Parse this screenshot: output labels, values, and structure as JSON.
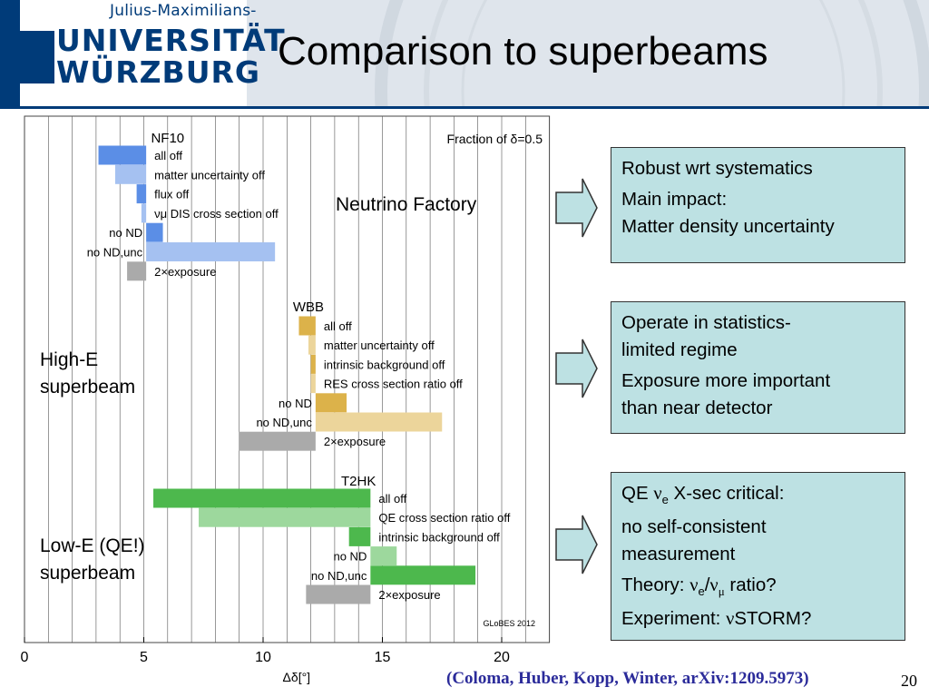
{
  "header": {
    "logo_small": "Julius-Maximilians-",
    "logo_line1": "UNIVERSITÄT",
    "logo_line2": "WÜRZBURG",
    "title": "Comparison to superbeams"
  },
  "chart_data": {
    "type": "bar",
    "subtype": "floating-horizontal",
    "title": "Fraction of δ=0.5",
    "xlabel": "Δδ[°]",
    "xlim": [
      0,
      22
    ],
    "xticks": [
      0,
      5,
      10,
      15,
      20
    ],
    "grid": true,
    "watermark": "GLoBES 2012",
    "groups": [
      {
        "name": "NF10",
        "color": "#5b8ee6",
        "bars": [
          {
            "label": "all off",
            "side": "right",
            "start": 3.1,
            "end": 5.1,
            "shade": "dark"
          },
          {
            "label": "matter uncertainty off",
            "side": "right",
            "start": 3.8,
            "end": 5.1,
            "shade": "light"
          },
          {
            "label": "flux off",
            "side": "right",
            "start": 4.7,
            "end": 5.1,
            "shade": "dark"
          },
          {
            "label": "νμ DIS cross section off",
            "side": "right",
            "start": 4.9,
            "end": 5.1,
            "shade": "light"
          },
          {
            "label": "no ND",
            "side": "left",
            "start": 5.1,
            "end": 5.8,
            "shade": "dark"
          },
          {
            "label": "no ND,unc",
            "side": "left",
            "start": 5.1,
            "end": 10.5,
            "shade": "light"
          },
          {
            "label": "2×exposure",
            "side": "right",
            "start": 4.3,
            "end": 5.1,
            "shade": "gray"
          }
        ]
      },
      {
        "name": "WBB",
        "color": "#dcb24a",
        "bars": [
          {
            "label": "all off",
            "side": "right",
            "start": 11.5,
            "end": 12.2,
            "shade": "dark"
          },
          {
            "label": "matter uncertainty off",
            "side": "right",
            "start": 11.9,
            "end": 12.2,
            "shade": "light"
          },
          {
            "label": "intrinsic background off",
            "side": "right",
            "start": 12.0,
            "end": 12.2,
            "shade": "dark"
          },
          {
            "label": "RES cross section ratio off",
            "side": "right",
            "start": 12.0,
            "end": 12.2,
            "shade": "light"
          },
          {
            "label": "no ND",
            "side": "left",
            "start": 12.2,
            "end": 13.5,
            "shade": "dark"
          },
          {
            "label": "no ND,unc",
            "side": "left",
            "start": 12.2,
            "end": 17.5,
            "shade": "light"
          },
          {
            "label": "2×exposure",
            "side": "right",
            "start": 9.0,
            "end": 12.2,
            "shade": "gray"
          }
        ]
      },
      {
        "name": "T2HK",
        "color": "#4db84d",
        "bars": [
          {
            "label": "all off",
            "side": "right",
            "start": 5.4,
            "end": 14.5,
            "shade": "dark"
          },
          {
            "label": "QE cross section ratio off",
            "side": "right",
            "start": 7.3,
            "end": 14.5,
            "shade": "light"
          },
          {
            "label": "intrinsic background off",
            "side": "right",
            "start": 13.6,
            "end": 14.5,
            "shade": "dark"
          },
          {
            "label": "no ND",
            "side": "left",
            "start": 14.5,
            "end": 15.6,
            "shade": "light"
          },
          {
            "label": "no ND,unc",
            "side": "left",
            "start": 14.5,
            "end": 18.9,
            "shade": "dark"
          },
          {
            "label": "2×exposure",
            "side": "right",
            "start": 11.8,
            "end": 14.5,
            "shade": "gray"
          }
        ]
      }
    ]
  },
  "side_labels": {
    "nf": "Neutrino Factory",
    "highe_1": "High-E",
    "highe_2": "superbeam",
    "lowe_1": "Low-E (QE!)",
    "lowe_2": "superbeam"
  },
  "boxes": {
    "b1_p1": "Robust wrt systematics",
    "b1_p2a": "Main impact:",
    "b1_p2b": "Matter density uncertainty",
    "b2_p1a": "Operate in statistics-",
    "b2_p1b": "limited regime",
    "b2_p2a": "Exposure more important",
    "b2_p2b": "than near detector",
    "b3_qe_pre": "QE ",
    "b3_nu": "ν",
    "b3_e": "e",
    "b3_qe_post": " X-sec critical:",
    "b3_l2": "no self-consistent",
    "b3_l3": "measurement",
    "b3_th_pre": "Theory: ",
    "b3_mu": "μ",
    "b3_th_post": " ratio?",
    "b3_exp_pre": "Experiment: ",
    "b3_exp_post": "STORM?"
  },
  "footer": {
    "citation": "(Coloma, Huber, Kopp, Winter, arXiv:1209.5973)",
    "page": "20"
  },
  "colors": {
    "brand_blue": "#003b79",
    "box_fill": "#bde1e3",
    "citation": "#2b2b9a"
  }
}
